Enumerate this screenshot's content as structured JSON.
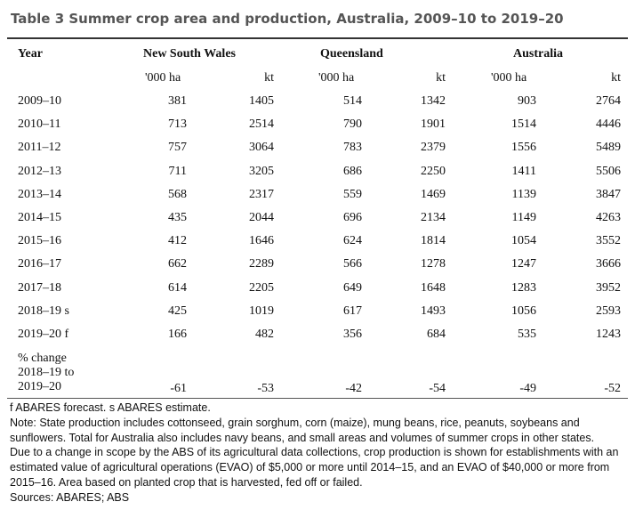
{
  "title": "Table 3 Summer crop area and production, Australia, 2009–10 to 2019–20",
  "headers": {
    "year": "Year",
    "groups": [
      "New South Wales",
      "Queensland",
      "Australia"
    ],
    "units": [
      "'000 ha",
      "kt",
      "'000 ha",
      "kt",
      "'000 ha",
      "kt"
    ]
  },
  "rows": [
    {
      "year": "2009–10",
      "values": [
        "381",
        "1405",
        "514",
        "1342",
        "903",
        "2764"
      ]
    },
    {
      "year": "2010–11",
      "values": [
        "713",
        "2514",
        "790",
        "1901",
        "1514",
        "4446"
      ]
    },
    {
      "year": "2011–12",
      "values": [
        "757",
        "3064",
        "783",
        "2379",
        "1556",
        "5489"
      ]
    },
    {
      "year": "2012–13",
      "values": [
        "711",
        "3205",
        "686",
        "2250",
        "1411",
        "5506"
      ]
    },
    {
      "year": "2013–14",
      "values": [
        "568",
        "2317",
        "559",
        "1469",
        "1139",
        "3847"
      ]
    },
    {
      "year": "2014–15",
      "values": [
        "435",
        "2044",
        "696",
        "2134",
        "1149",
        "4263"
      ]
    },
    {
      "year": "2015–16",
      "values": [
        "412",
        "1646",
        "624",
        "1814",
        "1054",
        "3552"
      ]
    },
    {
      "year": "2016–17",
      "values": [
        "662",
        "2289",
        "566",
        "1278",
        "1247",
        "3666"
      ]
    },
    {
      "year": "2017–18",
      "values": [
        "614",
        "2205",
        "649",
        "1648",
        "1283",
        "3952"
      ]
    },
    {
      "year": "2018–19 s",
      "values": [
        "425",
        "1019",
        "617",
        "1493",
        "1056",
        "2593"
      ]
    },
    {
      "year": "2019–20 f",
      "values": [
        "166",
        "482",
        "356",
        "684",
        "535",
        "1243"
      ]
    }
  ],
  "change_row": {
    "label_lines": [
      "% change",
      "2018–19 to",
      "2019–20"
    ],
    "values": [
      "-61",
      "-53",
      "-42",
      "-54",
      "-49",
      "-52"
    ]
  },
  "notes": [
    "f ABARES forecast. s ABARES estimate.",
    "Note: State production includes cottonseed, grain sorghum, corn (maize), mung beans, rice, peanuts, soybeans and",
    "sunflowers. Total for Australia also includes navy beans, and small areas and volumes of summer crops in other states.",
    "Due to a change in scope by the ABS of its agricultural data collections, crop production is shown for establishments with an",
    "estimated value of agricultural operations (EVAO) of $5,000 or more until 2014–15, and an EVAO of $40,000 or more from",
    "2015–16. Area based on planted crop that is harvested, fed off or failed.",
    "Sources: ABARES; ABS"
  ]
}
